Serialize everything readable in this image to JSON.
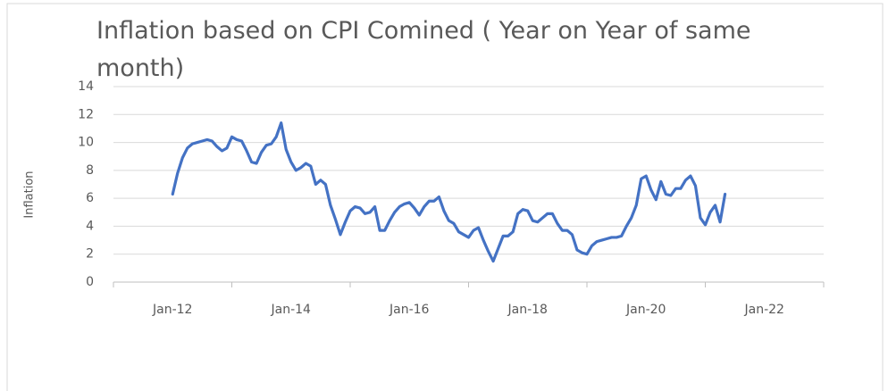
{
  "chart_data": {
    "type": "line",
    "title": "Inflation based on CPI Comined ( Year on Year of same month)",
    "ylabel": "Inflation",
    "x": [
      "2012-01",
      "2012-02",
      "2012-03",
      "2012-04",
      "2012-05",
      "2012-06",
      "2012-07",
      "2012-08",
      "2012-09",
      "2012-10",
      "2012-11",
      "2012-12",
      "2013-01",
      "2013-02",
      "2013-03",
      "2013-04",
      "2013-05",
      "2013-06",
      "2013-07",
      "2013-08",
      "2013-09",
      "2013-10",
      "2013-11",
      "2013-12",
      "2014-01",
      "2014-02",
      "2014-03",
      "2014-04",
      "2014-05",
      "2014-06",
      "2014-07",
      "2014-08",
      "2014-09",
      "2014-10",
      "2014-11",
      "2014-12",
      "2015-01",
      "2015-02",
      "2015-03",
      "2015-04",
      "2015-05",
      "2015-06",
      "2015-07",
      "2015-08",
      "2015-09",
      "2015-10",
      "2015-11",
      "2015-12",
      "2016-01",
      "2016-02",
      "2016-03",
      "2016-04",
      "2016-05",
      "2016-06",
      "2016-07",
      "2016-08",
      "2016-09",
      "2016-10",
      "2016-11",
      "2016-12",
      "2017-01",
      "2017-02",
      "2017-03",
      "2017-04",
      "2017-05",
      "2017-06",
      "2017-07",
      "2017-08",
      "2017-09",
      "2017-10",
      "2017-11",
      "2017-12",
      "2018-01",
      "2018-02",
      "2018-03",
      "2018-04",
      "2018-05",
      "2018-06",
      "2018-07",
      "2018-08",
      "2018-09",
      "2018-10",
      "2018-11",
      "2018-12",
      "2019-01",
      "2019-02",
      "2019-03",
      "2019-04",
      "2019-05",
      "2019-06",
      "2019-07",
      "2019-08",
      "2019-09",
      "2019-10",
      "2019-11",
      "2019-12",
      "2020-01",
      "2020-02",
      "2020-03",
      "2020-04",
      "2020-05",
      "2020-06",
      "2020-07",
      "2020-08",
      "2020-09",
      "2020-10",
      "2020-11",
      "2020-12",
      "2021-01",
      "2021-02",
      "2021-03",
      "2021-04",
      "2021-05"
    ],
    "series": [
      {
        "name": "Inflation",
        "color": "#4472c4",
        "values": [
          6.3,
          7.8,
          8.9,
          9.6,
          9.9,
          10.0,
          10.1,
          10.2,
          10.1,
          9.7,
          9.4,
          9.6,
          10.4,
          10.2,
          10.1,
          9.4,
          8.6,
          8.5,
          9.3,
          9.8,
          9.9,
          10.4,
          11.4,
          9.5,
          8.6,
          8.0,
          8.2,
          8.5,
          8.3,
          7.0,
          7.3,
          7.0,
          5.5,
          4.5,
          3.4,
          4.3,
          5.1,
          5.4,
          5.3,
          4.9,
          5.0,
          5.4,
          3.7,
          3.7,
          4.4,
          5.0,
          5.4,
          5.6,
          5.7,
          5.3,
          4.8,
          5.4,
          5.8,
          5.8,
          6.1,
          5.1,
          4.4,
          4.2,
          3.6,
          3.4,
          3.2,
          3.7,
          3.9,
          3.0,
          2.2,
          1.5,
          2.4,
          3.3,
          3.3,
          3.6,
          4.9,
          5.2,
          5.1,
          4.4,
          4.3,
          4.6,
          4.9,
          4.9,
          4.2,
          3.7,
          3.7,
          3.4,
          2.3,
          2.1,
          2.0,
          2.6,
          2.9,
          3.0,
          3.1,
          3.2,
          3.2,
          3.3,
          4.0,
          4.6,
          5.5,
          7.4,
          7.6,
          6.6,
          5.9,
          7.2,
          6.3,
          6.2,
          6.7,
          6.7,
          7.3,
          7.6,
          6.9,
          4.6,
          4.1,
          5.0,
          5.5,
          4.3,
          6.3
        ]
      }
    ],
    "xlim": [
      "2011-01",
      "2023-01"
    ],
    "xticks": [
      {
        "value": "2012-01",
        "label": "Jan-12"
      },
      {
        "value": "2014-01",
        "label": "Jan-14"
      },
      {
        "value": "2016-01",
        "label": "Jan-16"
      },
      {
        "value": "2018-01",
        "label": "Jan-18"
      },
      {
        "value": "2020-01",
        "label": "Jan-20"
      },
      {
        "value": "2022-01",
        "label": "Jan-22"
      }
    ],
    "xtick_marks": [
      "2011-01",
      "2013-01",
      "2015-01",
      "2017-01",
      "2019-01",
      "2021-01",
      "2023-01"
    ],
    "ylim": [
      0,
      14
    ],
    "yticks": [
      0,
      2,
      4,
      6,
      8,
      10,
      12,
      14
    ],
    "grid": true
  }
}
